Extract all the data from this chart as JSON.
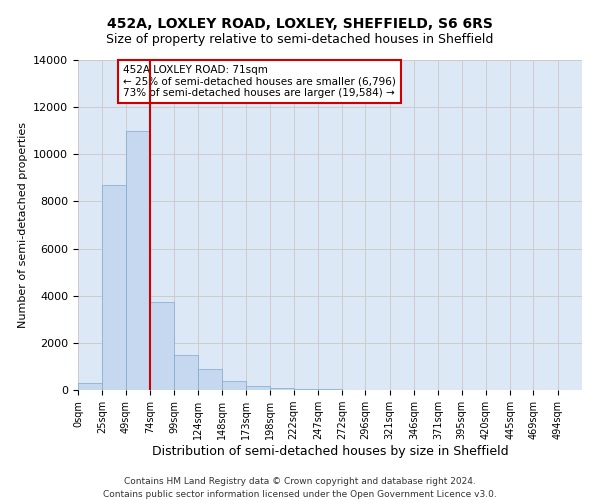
{
  "title_line1": "452A, LOXLEY ROAD, LOXLEY, SHEFFIELD, S6 6RS",
  "title_line2": "Size of property relative to semi-detached houses in Sheffield",
  "xlabel": "Distribution of semi-detached houses by size in Sheffield",
  "ylabel": "Number of semi-detached properties",
  "footer_line1": "Contains HM Land Registry data © Crown copyright and database right 2024.",
  "footer_line2": "Contains public sector information licensed under the Open Government Licence v3.0.",
  "annotation_line1": "452A LOXLEY ROAD: 71sqm",
  "annotation_line2": "← 25% of semi-detached houses are smaller (6,796)",
  "annotation_line3": "73% of semi-detached houses are larger (19,584) →",
  "bin_edges": [
    0,
    25,
    49,
    74,
    99,
    124,
    148,
    173,
    198,
    222,
    247,
    272,
    296,
    321,
    346,
    371,
    395,
    420,
    445,
    469,
    494
  ],
  "bar_heights": [
    300,
    8700,
    11000,
    3750,
    1500,
    900,
    380,
    175,
    100,
    50,
    30,
    15,
    10,
    5,
    3,
    2,
    1,
    1,
    0,
    0
  ],
  "bar_color": "#c5d8ef",
  "bar_edgecolor": "#7aabcc",
  "vline_color": "#cc0000",
  "vline_x": 74,
  "ylim": [
    0,
    14000
  ],
  "yticks": [
    0,
    2000,
    4000,
    6000,
    8000,
    10000,
    12000,
    14000
  ],
  "xlim_min": 0,
  "xlim_max": 519,
  "tick_labels": [
    "0sqm",
    "25sqm",
    "49sqm",
    "74sqm",
    "99sqm",
    "124sqm",
    "148sqm",
    "173sqm",
    "198sqm",
    "222sqm",
    "247sqm",
    "272sqm",
    "296sqm",
    "321sqm",
    "346sqm",
    "371sqm",
    "395sqm",
    "420sqm",
    "445sqm",
    "469sqm",
    "494sqm"
  ],
  "grid_color": "#cccccc",
  "background_color": "#dce8f5",
  "annotation_box_edgecolor": "#cc0000",
  "annotation_box_facecolor": "#ffffff",
  "title1_fontsize": 10,
  "title2_fontsize": 9,
  "ylabel_fontsize": 8,
  "xlabel_fontsize": 9,
  "ytick_fontsize": 8,
  "xtick_fontsize": 7
}
